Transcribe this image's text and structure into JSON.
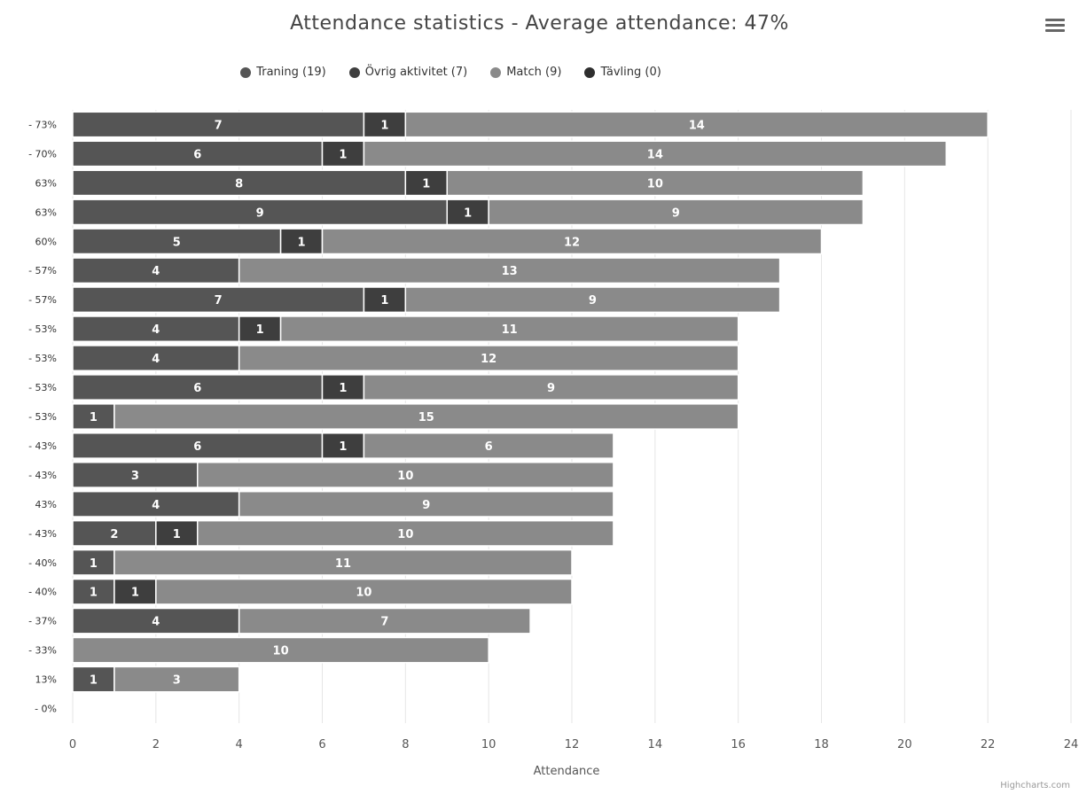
{
  "header": {
    "title": "Attendance statistics - Average attendance: 47%",
    "menu_icon": "hamburger-menu-icon"
  },
  "credits": "Highcharts.com",
  "colors": {
    "Traning": "#555555",
    "Ovrig": "#3e3e3e",
    "Match": "#8a8a8a",
    "Tavling": "#2e2e2e",
    "grid": "#e6e6e6",
    "label": "#ffffff"
  },
  "chart_data": {
    "type": "bar",
    "stacked": true,
    "orientation": "horizontal",
    "title": "Attendance statistics - Average attendance: 47%",
    "xlabel": "Attendance",
    "xlim": [
      0,
      24
    ],
    "xticks": [
      0,
      2,
      4,
      6,
      8,
      10,
      12,
      14,
      16,
      18,
      20,
      22,
      24
    ],
    "grid": true,
    "legend_position": "top",
    "categories": [
      "- 73%",
      "- 70%",
      "63%",
      "63%",
      "60%",
      "- 57%",
      "- 57%",
      "- 53%",
      "- 53%",
      "- 53%",
      "- 53%",
      "- 43%",
      "- 43%",
      "43%",
      "- 43%",
      "- 40%",
      "- 40%",
      "- 37%",
      "- 33%",
      "13%",
      "- 0%"
    ],
    "series": [
      {
        "key": "Traning",
        "name": "Traning (19)",
        "values": [
          7,
          6,
          8,
          9,
          5,
          4,
          7,
          4,
          4,
          6,
          1,
          6,
          3,
          4,
          2,
          1,
          1,
          4,
          0,
          1,
          0
        ]
      },
      {
        "key": "Ovrig",
        "name": "Övrig aktivitet (7)",
        "values": [
          1,
          1,
          1,
          1,
          1,
          0,
          1,
          1,
          0,
          1,
          0,
          1,
          0,
          0,
          1,
          0,
          1,
          0,
          0,
          0,
          0
        ]
      },
      {
        "key": "Match",
        "name": "Match (9)",
        "values": [
          14,
          14,
          10,
          9,
          12,
          13,
          9,
          11,
          12,
          9,
          15,
          6,
          10,
          9,
          10,
          11,
          10,
          7,
          10,
          3,
          0
        ]
      },
      {
        "key": "Tavling",
        "name": "Tävling (0)",
        "values": [
          0,
          0,
          0,
          0,
          0,
          0,
          0,
          0,
          0,
          0,
          0,
          0,
          0,
          0,
          0,
          0,
          0,
          0,
          0,
          0,
          0
        ]
      }
    ]
  }
}
